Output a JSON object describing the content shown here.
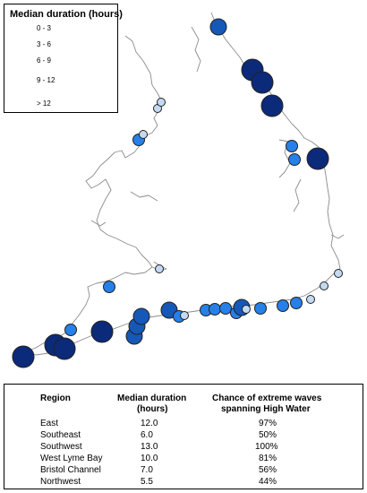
{
  "legend": {
    "title": "Median duration (hours)",
    "classes": [
      {
        "label": "0 - 3",
        "color": "#d4e7f7"
      },
      {
        "label": "3 - 6",
        "color": "#c4daf2"
      },
      {
        "label": "6 - 9",
        "color": "#2680e8"
      },
      {
        "label": "9 - 12",
        "color": "#1558b8"
      },
      {
        "label": "> 12",
        "color": "#0c2a7a"
      }
    ]
  },
  "table": {
    "headers": {
      "region": "Region",
      "duration_line1": "Median duration",
      "duration_line2": "(hours)",
      "chance_line1": "Chance of extreme waves",
      "chance_line2": "spanning High Water"
    },
    "rows": [
      {
        "region": "East",
        "duration": "12.0",
        "chance": "97%"
      },
      {
        "region": "Southeast",
        "duration": "6.0",
        "chance": "50%"
      },
      {
        "region": "Southwest",
        "duration": "13.0",
        "chance": "100%"
      },
      {
        "region": "West Lyme Bay",
        "duration": "10.0",
        "chance": "81%"
      },
      {
        "region": "Bristol Channel",
        "duration": "7.0",
        "chance": "56%"
      },
      {
        "region": "Northwest",
        "duration": "5.5",
        "chance": "44%"
      }
    ]
  },
  "colors": {
    "coastline": "#8c8c8c",
    "marker_stroke": "#222222"
  }
}
